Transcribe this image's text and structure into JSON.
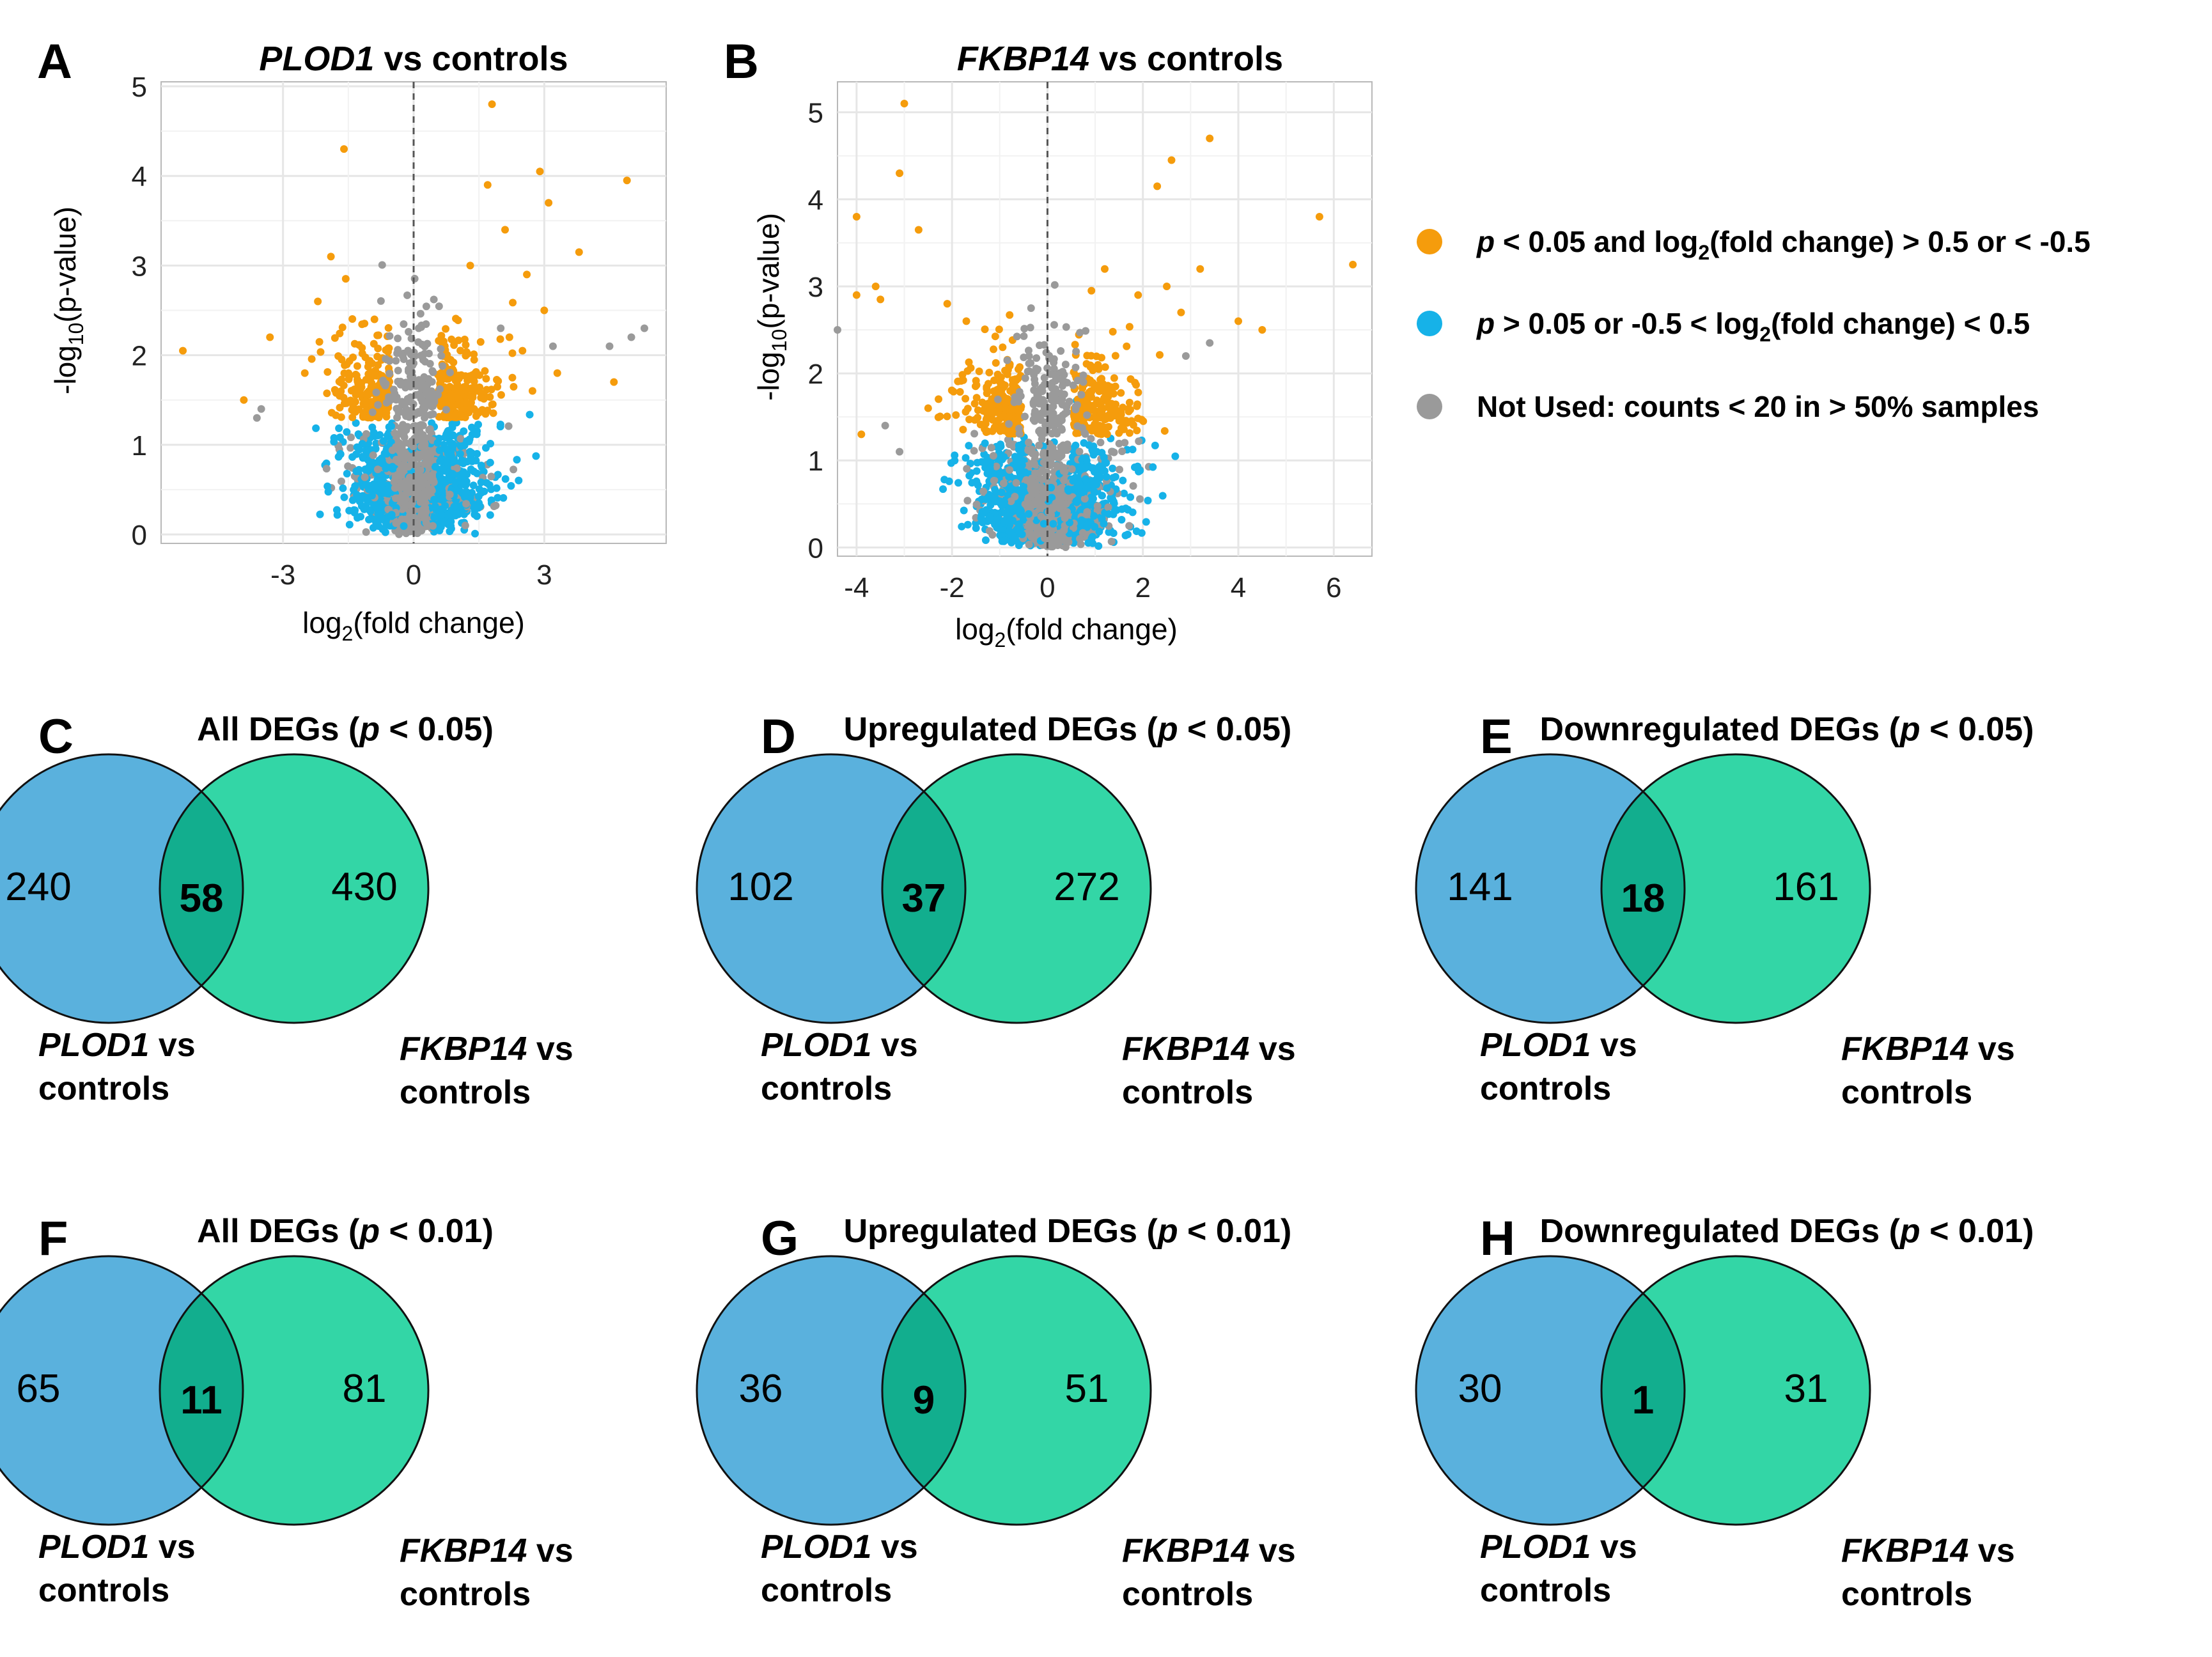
{
  "colors": {
    "significant": "#f59c0c",
    "not_significant": "#16b2e8",
    "not_used": "#9a9a9a",
    "venn_left": "#5ab1dd",
    "venn_right": "#33d6a6",
    "venn_overlap": "#12ae8e"
  },
  "legend": [
    {
      "color_key": "significant",
      "p_sym": "p",
      "pre": " < 0.05 and log",
      "sub": "2",
      "post": "(fold change) > 0.5 or < -0.5"
    },
    {
      "color_key": "not_significant",
      "p_sym": "p",
      "pre": " > 0.05 or -0.5 < log",
      "sub": "2",
      "post": "(fold change) < 0.5"
    },
    {
      "color_key": "not_used",
      "p_sym": "",
      "pre": "Not Used: counts < 20 in > 50% samples",
      "sub": "",
      "post": ""
    }
  ],
  "chart_data": [
    {
      "panel": "A",
      "type": "scatter",
      "title_gene": "PLOD1",
      "title_rest": " vs controls",
      "xlabel_pre": "log",
      "xlabel_sub": "2",
      "xlabel_post": "(fold change)",
      "ylabel_pre": "-log",
      "ylabel_sub": "10",
      "ylabel_post": "(p-value)",
      "xlim": [
        -5.8,
        5.8
      ],
      "ylim": [
        -0.1,
        5.05
      ],
      "xticks": [
        -3,
        0,
        3
      ],
      "yticks": [
        0,
        1,
        2,
        3,
        4,
        5
      ],
      "highlighted_points": [
        [
          1.8,
          4.8
        ],
        [
          -1.6,
          4.3
        ],
        [
          1.7,
          3.9
        ],
        [
          2.9,
          4.05
        ],
        [
          3.1,
          3.7
        ],
        [
          4.9,
          3.95
        ],
        [
          3.8,
          3.15
        ],
        [
          -1.9,
          3.1
        ],
        [
          2.1,
          3.4
        ],
        [
          -3.3,
          2.2
        ],
        [
          -5.3,
          2.05
        ],
        [
          -2.2,
          2.6
        ],
        [
          4.6,
          1.7
        ],
        [
          3.3,
          1.8
        ],
        [
          -3.9,
          1.5
        ],
        [
          -2.5,
          1.8
        ],
        [
          2.6,
          2.9
        ],
        [
          1.3,
          3.0
        ],
        [
          -0.9,
          2.4
        ],
        [
          2.2,
          2.2
        ],
        [
          2.5,
          2.05
        ],
        [
          3.0,
          2.5
        ]
      ],
      "grey_outliers": [
        [
          4.5,
          2.1
        ],
        [
          5.0,
          2.2
        ],
        [
          5.3,
          2.3
        ],
        [
          -3.5,
          1.4
        ],
        [
          -3.6,
          1.3
        ],
        [
          2.0,
          2.3
        ],
        [
          3.2,
          2.1
        ]
      ],
      "cloud": {
        "threshold_logp": 1.3,
        "fc_threshold": 0.5,
        "n_points": 1400
      }
    },
    {
      "panel": "B",
      "type": "scatter",
      "title_gene": "FKBP14",
      "title_rest": " vs controls",
      "xlabel_pre": "log",
      "xlabel_sub": "2",
      "xlabel_post": "(fold change)",
      "ylabel_pre": "-log",
      "ylabel_sub": "10",
      "ylabel_post": "(p-value)",
      "xlim": [
        -4.4,
        6.8
      ],
      "ylim": [
        -0.1,
        5.35
      ],
      "xticks": [
        -4,
        -2,
        0,
        2,
        4,
        6
      ],
      "yticks": [
        0,
        1,
        2,
        3,
        4,
        5
      ],
      "highlighted_points": [
        [
          -3.0,
          5.1
        ],
        [
          -3.1,
          4.3
        ],
        [
          -4.0,
          3.8
        ],
        [
          -2.7,
          3.65
        ],
        [
          -3.6,
          3.0
        ],
        [
          -4.0,
          2.9
        ],
        [
          -3.5,
          2.85
        ],
        [
          -2.1,
          2.8
        ],
        [
          3.4,
          4.7
        ],
        [
          2.6,
          4.45
        ],
        [
          2.3,
          4.15
        ],
        [
          5.7,
          3.8
        ],
        [
          6.4,
          3.25
        ],
        [
          3.2,
          3.2
        ],
        [
          2.5,
          3.0
        ],
        [
          4.0,
          2.6
        ],
        [
          4.5,
          2.5
        ],
        [
          -3.9,
          1.3
        ],
        [
          -2.5,
          1.6
        ],
        [
          1.9,
          2.9
        ],
        [
          2.8,
          2.7
        ],
        [
          -1.7,
          2.6
        ],
        [
          1.2,
          3.2
        ]
      ],
      "grey_outliers": [
        [
          -3.1,
          1.1
        ],
        [
          -3.4,
          1.4
        ],
        [
          -4.4,
          2.5
        ],
        [
          3.4,
          2.35
        ],
        [
          2.9,
          2.2
        ]
      ],
      "cloud": {
        "threshold_logp": 1.3,
        "fc_threshold": 0.5,
        "n_points": 1500
      }
    }
  ],
  "venns": [
    {
      "panel": "C",
      "title_pre": "All  DEGs (",
      "title_p": "p",
      "title_post": " < 0.05)",
      "left": "240",
      "overlap": "58",
      "right": "430"
    },
    {
      "panel": "D",
      "title_pre": "Upregulated DEGs (",
      "title_p": "p",
      "title_post": " < 0.05)",
      "left": "102",
      "overlap": "37",
      "right": "272"
    },
    {
      "panel": "E",
      "title_pre": "Downregulated DEGs (",
      "title_p": "p",
      "title_post": " < 0.05)",
      "left": "141",
      "overlap": "18",
      "right": "161"
    },
    {
      "panel": "F",
      "title_pre": "All  DEGs (",
      "title_p": "p",
      "title_post": " < 0.01)",
      "left": "65",
      "overlap": "11",
      "right": "81"
    },
    {
      "panel": "G",
      "title_pre": "Upregulated DEGs (",
      "title_p": "p",
      "title_post": " < 0.01)",
      "left": "36",
      "overlap": "9",
      "right": "51"
    },
    {
      "panel": "H",
      "title_pre": "Downregulated DEGs (",
      "title_p": "p",
      "title_post": " < 0.01)",
      "left": "30",
      "overlap": "1",
      "right": "31"
    }
  ],
  "venn_labels": {
    "left_gene": "PLOD1",
    "right_gene": "FKBP14",
    "vs": " vs",
    "controls": "controls"
  }
}
